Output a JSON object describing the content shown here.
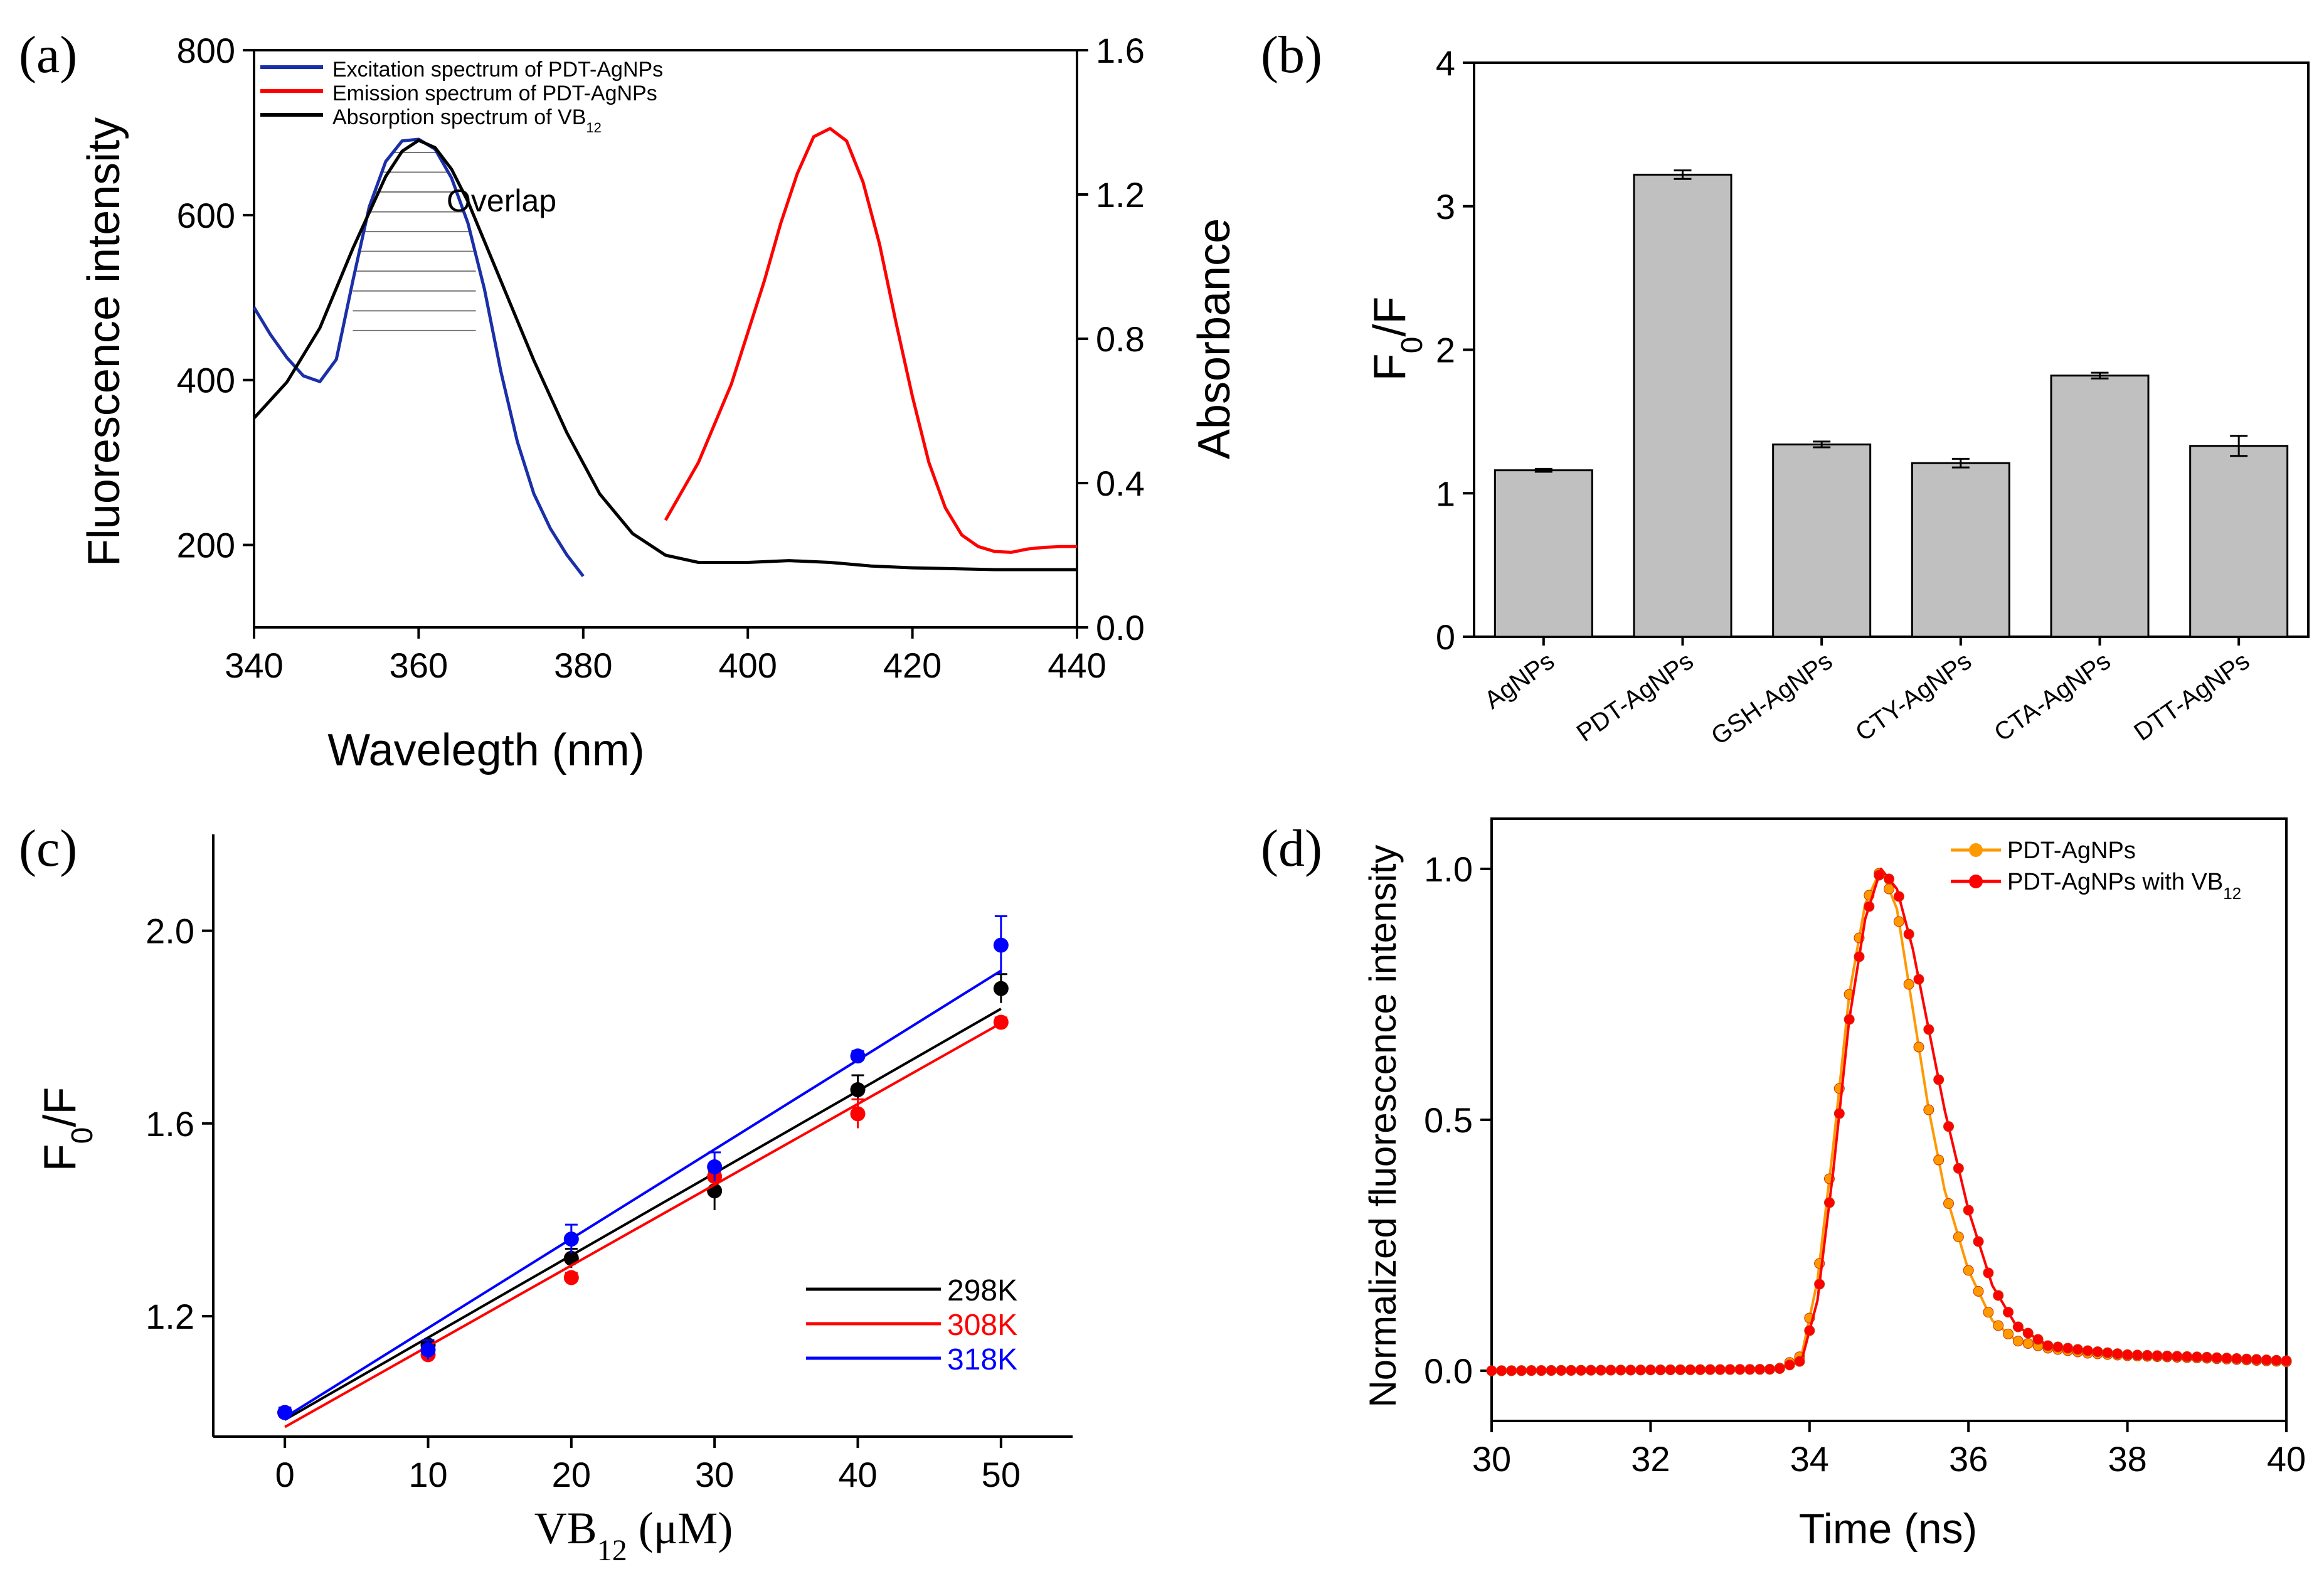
{
  "colors": {
    "blue": "#0000ff",
    "navy": "#1a2fa8",
    "red": "#ff0000",
    "black": "#000000",
    "orange": "#ff9900",
    "bar": "#c0c0c0"
  },
  "panel_a": {
    "label": "(a)",
    "xlabel": "Wavelegth (nm)",
    "ylabel": "Fluorescence intensity",
    "y2label": "Absorbance",
    "annotation": "Overlap",
    "legend": [
      {
        "text": "Excitation spectrum of PDT-AgNPs",
        "color": "#1a2fa8"
      },
      {
        "text": "Emission spectrum of PDT-AgNPs",
        "color": "#ff0000"
      },
      {
        "text": "Absorption spectrum of VB",
        "sub": "12",
        "color": "#000000"
      }
    ]
  },
  "panel_b": {
    "label": "(b)",
    "ylabel_main": "F",
    "ylabel_sub": "0",
    "ylabel_tail": "/F"
  },
  "panel_c": {
    "label": "(c)",
    "ylabel_main": "F",
    "ylabel_sub": "0",
    "ylabel_tail": "/F",
    "xlabel_main": "VB",
    "xlabel_sub": "12",
    "xlabel_tail": " (μM)"
  },
  "panel_d": {
    "label": "(d)",
    "xlabel": "Time (ns)",
    "ylabel": "Normalized fluorescence intensity",
    "legend": [
      {
        "text": "PDT-AgNPs",
        "sub": ""
      },
      {
        "text": "PDT-AgNPs with VB",
        "sub": "12"
      }
    ]
  },
  "chart_data": [
    {
      "id": "a",
      "type": "line",
      "title": "",
      "xlabel": "Wavelegth (nm)",
      "ylabel": "Fluorescence intensity",
      "y2label": "Absorbance",
      "xlim": [
        340,
        440
      ],
      "ylim": [
        100,
        800
      ],
      "y2lim": [
        0,
        1.6
      ],
      "xticks": [
        340,
        360,
        380,
        400,
        420,
        440
      ],
      "yticks": [
        200,
        400,
        600,
        800
      ],
      "y2ticks": [
        0.0,
        0.4,
        0.8,
        1.2,
        1.6
      ],
      "series": [
        {
          "name": "Excitation spectrum of PDT-AgNPs",
          "axis": "left",
          "color": "#1a2fa8",
          "x": [
            340,
            342,
            344,
            346,
            348,
            350,
            352,
            354,
            356,
            358,
            360,
            362,
            364,
            366,
            368,
            370,
            372,
            374,
            376,
            378,
            380
          ],
          "y": [
            488,
            455,
            427,
            405,
            398,
            425,
            520,
            610,
            665,
            690,
            692,
            680,
            645,
            590,
            510,
            410,
            325,
            262,
            220,
            188,
            162
          ]
        },
        {
          "name": "Emission spectrum of PDT-AgNPs",
          "axis": "left",
          "color": "#ff0000",
          "x": [
            390,
            394,
            398,
            402,
            404,
            406,
            408,
            410,
            412,
            414,
            416,
            418,
            420,
            422,
            424,
            426,
            428,
            430,
            432,
            434,
            436,
            438,
            440
          ],
          "y": [
            230,
            300,
            395,
            520,
            590,
            650,
            695,
            705,
            690,
            640,
            565,
            470,
            380,
            300,
            245,
            212,
            198,
            192,
            191,
            195,
            197,
            198,
            198
          ]
        },
        {
          "name": "Absorption spectrum of VB12",
          "axis": "right",
          "color": "#000000",
          "x": [
            340,
            344,
            348,
            352,
            356,
            358,
            360,
            362,
            364,
            366,
            370,
            374,
            378,
            382,
            386,
            390,
            394,
            400,
            405,
            410,
            415,
            420,
            430,
            440
          ],
          "y": [
            0.58,
            0.68,
            0.83,
            1.05,
            1.25,
            1.32,
            1.35,
            1.33,
            1.27,
            1.18,
            0.96,
            0.74,
            0.54,
            0.37,
            0.26,
            0.2,
            0.18,
            0.18,
            0.185,
            0.18,
            0.17,
            0.165,
            0.16,
            0.16
          ]
        }
      ],
      "shade_region": [
        352,
        367
      ],
      "annotation": "Overlap"
    },
    {
      "id": "b",
      "type": "bar",
      "ylabel": "F0/F",
      "ylim": [
        0,
        4
      ],
      "yticks": [
        0,
        1,
        2,
        3,
        4
      ],
      "categories": [
        "AgNPs",
        "PDT-AgNPs",
        "GSH-AgNPs",
        "CTY-AgNPs",
        "CTA-AgNPs",
        "DTT-AgNPs"
      ],
      "values": [
        1.16,
        3.22,
        1.34,
        1.21,
        1.82,
        1.33
      ],
      "errors": [
        0.01,
        0.03,
        0.02,
        0.03,
        0.02,
        0.07
      ]
    },
    {
      "id": "c",
      "type": "scatter",
      "xlabel": "VB12 (μM)",
      "ylabel": "F0/F",
      "xlim": [
        -5,
        55
      ],
      "ylim": [
        0.95,
        2.2
      ],
      "xticks": [
        0,
        10,
        20,
        30,
        40,
        50
      ],
      "yticks": [
        1.2,
        1.6,
        2.0
      ],
      "x": [
        0,
        10,
        20,
        30,
        40,
        50
      ],
      "series": [
        {
          "name": "298K",
          "color": "#000000",
          "values": [
            1.0,
            1.14,
            1.32,
            1.46,
            1.67,
            1.88
          ],
          "errors": [
            0.01,
            0.01,
            0.02,
            0.04,
            0.03,
            0.03
          ],
          "fit": [
            0.985,
            1.838
          ]
        },
        {
          "name": "308K",
          "color": "#ff0000",
          "values": [
            1.0,
            1.12,
            1.28,
            1.49,
            1.62,
            1.81
          ],
          "errors": [
            0.01,
            0.01,
            0.01,
            0.02,
            0.03,
            0.01
          ],
          "fit": [
            0.97,
            1.808
          ]
        },
        {
          "name": "318K",
          "color": "#0000ff",
          "values": [
            1.0,
            1.13,
            1.36,
            1.51,
            1.74,
            1.97
          ],
          "errors": [
            0.01,
            0.02,
            0.03,
            0.03,
            0.01,
            0.06
          ],
          "fit": [
            0.99,
            1.917
          ]
        }
      ]
    },
    {
      "id": "d",
      "type": "line",
      "xlabel": "Time (ns)",
      "ylabel": "Normalized fluorescence intensity",
      "xlim": [
        30,
        40
      ],
      "ylim": [
        -0.1,
        1.1
      ],
      "xticks": [
        30,
        32,
        34,
        36,
        38,
        40
      ],
      "yticks": [
        0.0,
        0.5,
        1.0
      ],
      "series": [
        {
          "name": "PDT-AgNPs",
          "color": "#ff9900",
          "x": [
            30,
            33.6,
            33.9,
            34.1,
            34.3,
            34.5,
            34.7,
            34.9,
            35.1,
            35.3,
            35.5,
            35.7,
            36.0,
            36.3,
            36.6,
            37.0,
            37.5,
            38,
            39,
            40
          ],
          "y": [
            0,
            0.003,
            0.03,
            0.18,
            0.45,
            0.75,
            0.93,
            1.0,
            0.92,
            0.72,
            0.52,
            0.36,
            0.2,
            0.1,
            0.06,
            0.045,
            0.035,
            0.03,
            0.025,
            0.018
          ]
        },
        {
          "name": "PDT-AgNPs with VB12",
          "color": "#ff0000",
          "x": [
            30,
            33.6,
            33.9,
            34.1,
            34.3,
            34.5,
            34.7,
            34.9,
            35.1,
            35.3,
            35.5,
            35.7,
            36.0,
            36.3,
            36.6,
            37.0,
            37.5,
            38,
            39,
            40
          ],
          "y": [
            0,
            0.003,
            0.02,
            0.14,
            0.4,
            0.7,
            0.9,
            1.0,
            0.96,
            0.84,
            0.68,
            0.52,
            0.32,
            0.17,
            0.09,
            0.05,
            0.04,
            0.032,
            0.027,
            0.02
          ]
        }
      ]
    }
  ]
}
